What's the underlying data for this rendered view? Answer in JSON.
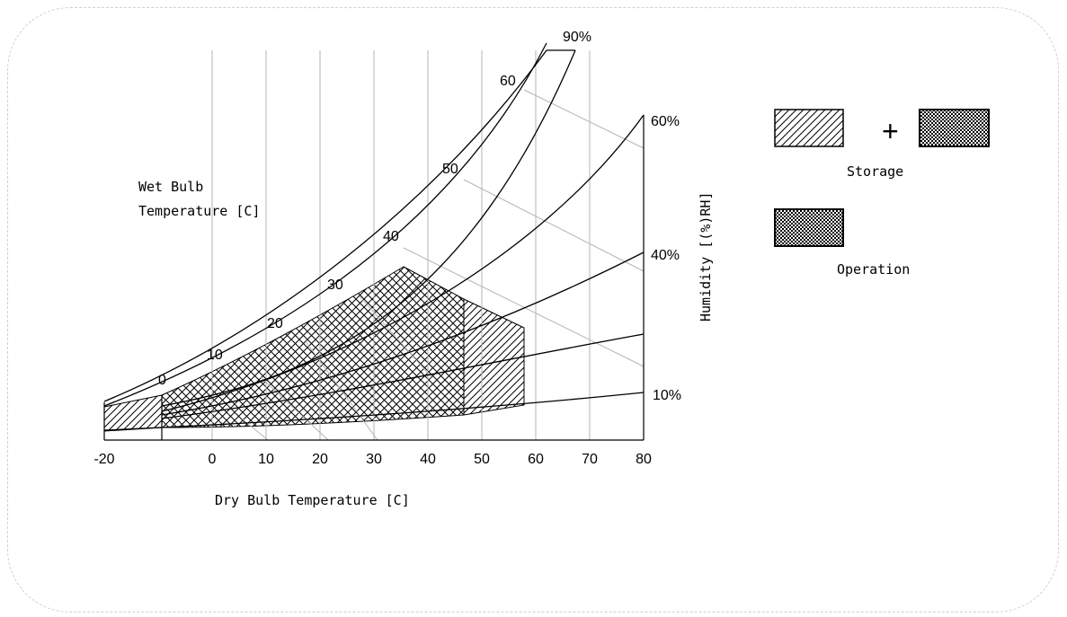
{
  "chart_data": {
    "type": "psychrometric",
    "xlabel": "Dry Bulb Temperature [C]",
    "ylabel": "Humidity [(%)RH]",
    "wet_bulb_label_line1": "Wet Bulb",
    "wet_bulb_label_line2": "Temperature [C]",
    "x_ticks": [
      "-20",
      "0",
      "10",
      "20",
      "30",
      "40",
      "50",
      "60",
      "70",
      "80"
    ],
    "x_tick_values": [
      -20,
      0,
      10,
      20,
      30,
      40,
      50,
      60,
      70,
      80
    ],
    "xlim": [
      -20,
      80
    ],
    "rh_curves": [
      {
        "label": "90%",
        "rh": 90
      },
      {
        "label": "60%",
        "rh": 60
      },
      {
        "label": "40%",
        "rh": 40
      },
      {
        "label": "10%",
        "rh": 10
      }
    ],
    "wet_bulb_labels": [
      {
        "label": "0",
        "value": 0
      },
      {
        "label": "10",
        "value": 10
      },
      {
        "label": "20",
        "value": 20
      },
      {
        "label": "30",
        "value": 30
      },
      {
        "label": "40",
        "value": 40
      },
      {
        "label": "50",
        "value": 50
      },
      {
        "label": "60",
        "value": 60
      }
    ],
    "regions": [
      {
        "name": "Storage",
        "dry_bulb_range": [
          -20,
          60
        ],
        "rh_range": [
          10,
          90
        ],
        "max_wet_bulb": 40
      },
      {
        "name": "Operation",
        "dry_bulb_range": [
          0,
          50
        ],
        "rh_range": [
          10,
          90
        ],
        "max_wet_bulb": 40
      }
    ],
    "legend": {
      "plus": "+",
      "storage_label": "Storage",
      "operation_label": "Operation"
    }
  }
}
